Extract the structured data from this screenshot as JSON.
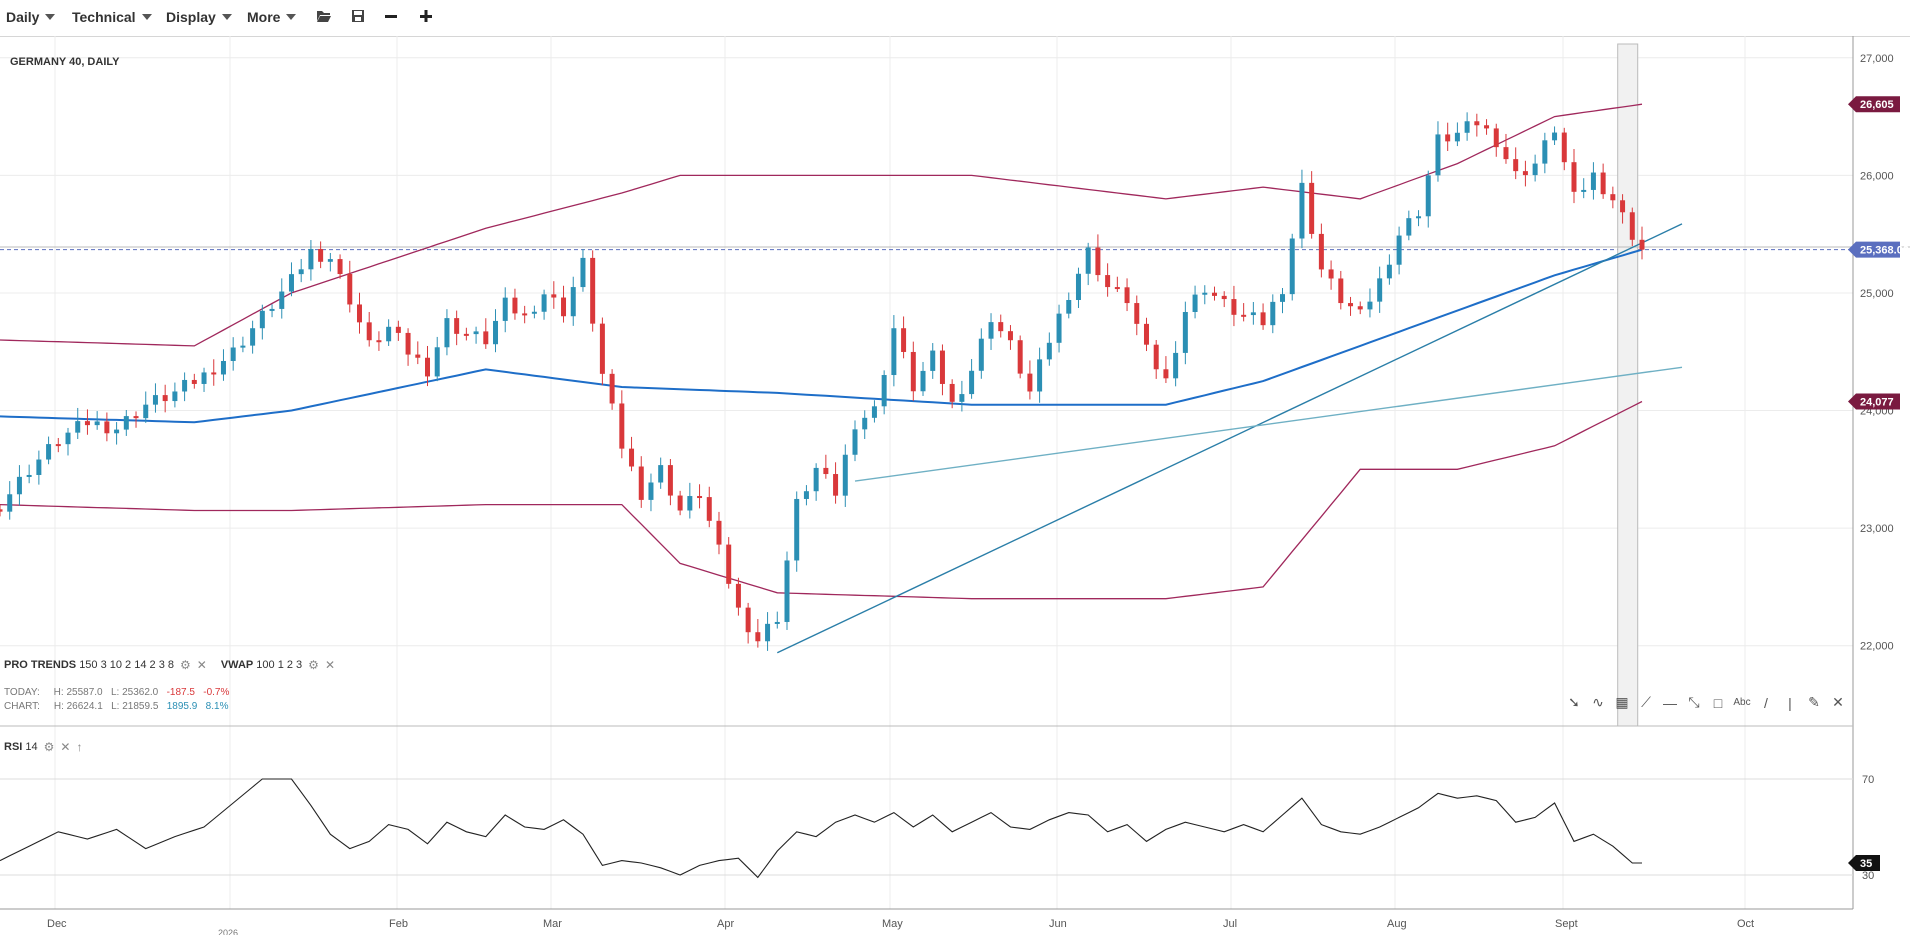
{
  "toolbar": {
    "period_label": "Daily",
    "technical_label": "Technical",
    "display_label": "Display",
    "more_label": "More",
    "icons": [
      "folder-open-icon",
      "save-icon",
      "zoom-out-icon",
      "zoom-in-icon"
    ]
  },
  "chart": {
    "title": "GERMANY 40, DAILY",
    "pro_trends": {
      "name": "PRO TRENDS",
      "params": "150 3 10 2 14 2 3 8"
    },
    "vwap": {
      "name": "VWAP",
      "params": "100 1 2 3"
    },
    "today": {
      "label": "TODAY:",
      "high": "H: 25587.0",
      "low": "L: 25362.0",
      "change": "-187.5",
      "pct": "-0.7%"
    },
    "chart_range": {
      "label": "CHART:",
      "high": "H: 26624.1",
      "low": "L: 21859.5",
      "change": "1895.9",
      "pct": "8.1%"
    },
    "price_badges": {
      "upper": "26,605",
      "current": "25,368.00",
      "lower": "24,077"
    },
    "rsi": {
      "name": "RSI",
      "period": "14",
      "badge": "35"
    },
    "colors": {
      "bull": "#2b8fb4",
      "bear": "#d9383a",
      "band": "#a0285c",
      "ma": "#1e6ec8",
      "trend": "#2a7ea8",
      "trend_light": "#6fb0c4",
      "current": "#5b6fbf"
    }
  },
  "chart_data": {
    "type": "candlestick",
    "title": "GERMANY 40, DAILY",
    "y_ticks": [
      "27,000",
      "26,000",
      "25,000",
      "24,000",
      "23,000",
      "22,000"
    ],
    "rsi_ticks": [
      "70",
      "30"
    ],
    "x_ticks": [
      "Dec",
      "",
      "Feb",
      "Mar",
      "Apr",
      "May",
      "Jun",
      "Jul",
      "Aug",
      "Sept",
      "Oct"
    ],
    "x_tick_sub": "2026",
    "ylim": [
      21700,
      27100
    ],
    "rsi_ylim": [
      20,
      80
    ],
    "current_price": 25368,
    "upper_band_last": 26605,
    "lower_band_last": 24077,
    "rsi_last": 35,
    "close_anchors": [
      [
        0,
        23200
      ],
      [
        3,
        23500
      ],
      [
        6,
        23750
      ],
      [
        9,
        23900
      ],
      [
        12,
        23850
      ],
      [
        15,
        24050
      ],
      [
        18,
        24150
      ],
      [
        21,
        24300
      ],
      [
        24,
        24500
      ],
      [
        27,
        24800
      ],
      [
        30,
        25100
      ],
      [
        32,
        25350
      ],
      [
        34,
        25300
      ],
      [
        36,
        24950
      ],
      [
        38,
        24550
      ],
      [
        40,
        24700
      ],
      [
        42,
        24500
      ],
      [
        44,
        24350
      ],
      [
        46,
        24750
      ],
      [
        48,
        24650
      ],
      [
        50,
        24600
      ],
      [
        52,
        24900
      ],
      [
        54,
        24800
      ],
      [
        56,
        25000
      ],
      [
        58,
        24850
      ],
      [
        60,
        25250
      ],
      [
        62,
        24300
      ],
      [
        64,
        23700
      ],
      [
        66,
        23300
      ],
      [
        68,
        23500
      ],
      [
        70,
        23150
      ],
      [
        72,
        23300
      ],
      [
        74,
        22800
      ],
      [
        76,
        22300
      ],
      [
        78,
        22050
      ],
      [
        80,
        22250
      ],
      [
        82,
        23200
      ],
      [
        84,
        23500
      ],
      [
        86,
        23300
      ],
      [
        88,
        23900
      ],
      [
        90,
        24000
      ],
      [
        92,
        24700
      ],
      [
        94,
        24200
      ],
      [
        96,
        24450
      ],
      [
        98,
        24050
      ],
      [
        100,
        24350
      ],
      [
        102,
        24800
      ],
      [
        104,
        24550
      ],
      [
        106,
        24150
      ],
      [
        108,
        24600
      ],
      [
        110,
        25000
      ],
      [
        112,
        25350
      ],
      [
        114,
        25050
      ],
      [
        116,
        24950
      ],
      [
        118,
        24500
      ],
      [
        120,
        24250
      ],
      [
        122,
        24850
      ],
      [
        124,
        25050
      ],
      [
        126,
        24900
      ],
      [
        128,
        24800
      ],
      [
        130,
        24750
      ],
      [
        132,
        25050
      ],
      [
        134,
        25900
      ],
      [
        136,
        25200
      ],
      [
        138,
        24950
      ],
      [
        140,
        24800
      ],
      [
        142,
        25100
      ],
      [
        144,
        25500
      ],
      [
        146,
        25700
      ],
      [
        148,
        26300
      ],
      [
        150,
        26350
      ],
      [
        152,
        26450
      ],
      [
        154,
        26300
      ],
      [
        156,
        26000
      ],
      [
        158,
        26100
      ],
      [
        160,
        26400
      ],
      [
        162,
        25800
      ],
      [
        164,
        26000
      ],
      [
        166,
        25800
      ],
      [
        168,
        25500
      ],
      [
        169,
        25368
      ]
    ],
    "rsi_anchors": [
      [
        0,
        36
      ],
      [
        3,
        42
      ],
      [
        6,
        48
      ],
      [
        9,
        45
      ],
      [
        12,
        49
      ],
      [
        15,
        41
      ],
      [
        18,
        46
      ],
      [
        21,
        50
      ],
      [
        24,
        60
      ],
      [
        27,
        70
      ],
      [
        30,
        70
      ],
      [
        32,
        59
      ],
      [
        34,
        47
      ],
      [
        36,
        41
      ],
      [
        38,
        44
      ],
      [
        40,
        51
      ],
      [
        42,
        49
      ],
      [
        44,
        43
      ],
      [
        46,
        52
      ],
      [
        48,
        48
      ],
      [
        50,
        46
      ],
      [
        52,
        55
      ],
      [
        54,
        50
      ],
      [
        56,
        49
      ],
      [
        58,
        53
      ],
      [
        60,
        47
      ],
      [
        62,
        34
      ],
      [
        64,
        36
      ],
      [
        66,
        35
      ],
      [
        68,
        33
      ],
      [
        70,
        30
      ],
      [
        72,
        34
      ],
      [
        74,
        36
      ],
      [
        76,
        37
      ],
      [
        78,
        29
      ],
      [
        80,
        40
      ],
      [
        82,
        48
      ],
      [
        84,
        46
      ],
      [
        86,
        52
      ],
      [
        88,
        55
      ],
      [
        90,
        52
      ],
      [
        92,
        56
      ],
      [
        94,
        50
      ],
      [
        96,
        55
      ],
      [
        98,
        48
      ],
      [
        100,
        52
      ],
      [
        102,
        56
      ],
      [
        104,
        50
      ],
      [
        106,
        49
      ],
      [
        108,
        53
      ],
      [
        110,
        56
      ],
      [
        112,
        55
      ],
      [
        114,
        48
      ],
      [
        116,
        51
      ],
      [
        118,
        44
      ],
      [
        120,
        49
      ],
      [
        122,
        52
      ],
      [
        124,
        50
      ],
      [
        126,
        48
      ],
      [
        128,
        51
      ],
      [
        130,
        48
      ],
      [
        132,
        55
      ],
      [
        134,
        62
      ],
      [
        136,
        51
      ],
      [
        138,
        48
      ],
      [
        140,
        47
      ],
      [
        142,
        50
      ],
      [
        144,
        54
      ],
      [
        146,
        58
      ],
      [
        148,
        64
      ],
      [
        150,
        62
      ],
      [
        152,
        63
      ],
      [
        154,
        61
      ],
      [
        156,
        52
      ],
      [
        158,
        54
      ],
      [
        160,
        60
      ],
      [
        162,
        44
      ],
      [
        164,
        47
      ],
      [
        166,
        42
      ],
      [
        168,
        35
      ],
      [
        169,
        35
      ]
    ],
    "upper_band": [
      [
        0,
        24600
      ],
      [
        20,
        24550
      ],
      [
        30,
        25000
      ],
      [
        50,
        25550
      ],
      [
        64,
        25850
      ],
      [
        70,
        26000
      ],
      [
        100,
        26000
      ],
      [
        120,
        25800
      ],
      [
        130,
        25900
      ],
      [
        140,
        25800
      ],
      [
        150,
        26100
      ],
      [
        160,
        26500
      ],
      [
        169,
        26605
      ]
    ],
    "lower_band": [
      [
        0,
        23200
      ],
      [
        20,
        23150
      ],
      [
        30,
        23150
      ],
      [
        50,
        23200
      ],
      [
        64,
        23200
      ],
      [
        70,
        22700
      ],
      [
        80,
        22450
      ],
      [
        100,
        22400
      ],
      [
        120,
        22400
      ],
      [
        130,
        22500
      ],
      [
        140,
        23500
      ],
      [
        150,
        23500
      ],
      [
        160,
        23700
      ],
      [
        169,
        24077
      ]
    ],
    "moving_average": [
      [
        0,
        23950
      ],
      [
        20,
        23900
      ],
      [
        30,
        24000
      ],
      [
        50,
        24350
      ],
      [
        64,
        24200
      ],
      [
        80,
        24150
      ],
      [
        100,
        24050
      ],
      [
        120,
        24050
      ],
      [
        130,
        24250
      ],
      [
        140,
        24550
      ],
      [
        150,
        24850
      ],
      [
        160,
        25150
      ],
      [
        169,
        25368
      ]
    ],
    "trendlines": [
      {
        "from": [
          80,
          21940
        ],
        "to": [
          169,
          25400
        ]
      },
      {
        "from": [
          88,
          23400
        ],
        "to": [
          169,
          24300
        ]
      }
    ]
  }
}
